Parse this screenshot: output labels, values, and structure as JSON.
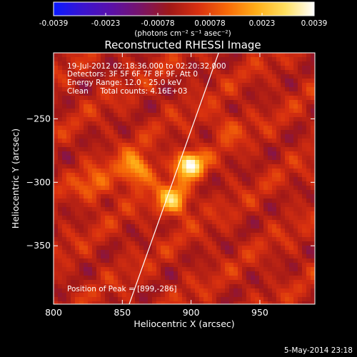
{
  "colorbar": {
    "min": -0.0039,
    "max": 0.0039,
    "tick_labels": [
      "-0.0039",
      "-0.0023",
      "-0.00078",
      "0.00078",
      "0.0023",
      "0.0039"
    ],
    "unit_label": "(photons cm⁻² s⁻¹ asec⁻²)",
    "colormap": [
      "#0a1aff",
      "#3a14d0",
      "#5a10a8",
      "#781468",
      "#a01818",
      "#d83010",
      "#f86a08",
      "#ffae18",
      "#ffe060",
      "#ffffff"
    ]
  },
  "chart_data": {
    "type": "heatmap",
    "title": "Reconstructed RHESSI Image",
    "xlabel": "Heliocentric X (arcsec)",
    "ylabel": "Heliocentric Y (arcsec)",
    "xlim": [
      800,
      990
    ],
    "ylim": [
      -396,
      -198
    ],
    "xticks": [
      800,
      850,
      900,
      950
    ],
    "yticks": [
      -250,
      -300,
      -350
    ],
    "xtick_labels": [
      "800",
      "850",
      "900",
      "950"
    ],
    "ytick_labels": [
      "−250",
      "−300",
      "−350"
    ],
    "sources": [
      {
        "x": 899,
        "y": -286,
        "peak": 0.0039,
        "sigma": 7
      },
      {
        "x": 887,
        "y": -314,
        "peak": 0.0029,
        "sigma": 8
      },
      {
        "x": 860,
        "y": -290,
        "peak": 0.0023,
        "sigma": 9
      },
      {
        "x": 830,
        "y": -303,
        "peak": 0.0012,
        "sigma": 9
      },
      {
        "x": 925,
        "y": -256,
        "peak": 0.0009,
        "sigma": 8
      }
    ],
    "limb_line": [
      [
        855,
        -396
      ],
      [
        920,
        -198
      ]
    ],
    "annotations": [
      "19-Jul-2012 02:18:36.000 to 02:20:32.000",
      "Detectors: 3F 5F 6F 7F 8F 9F, Att 0",
      "Energy Range: 12.0 - 25.0 keV",
      "Clean     Total counts: 4.16E+03"
    ],
    "peak_label": "Position of Peak = [899,-286]"
  },
  "footer": {
    "date_stamp": "5-May-2014 23:18"
  }
}
